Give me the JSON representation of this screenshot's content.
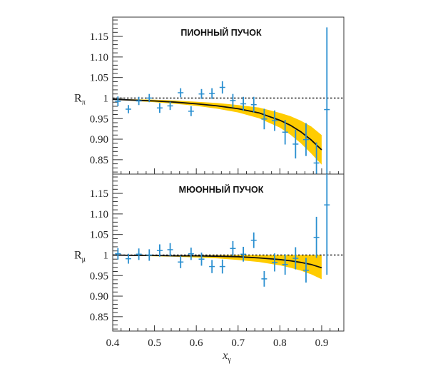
{
  "chart_data": [
    {
      "type": "scatter",
      "panel": "top",
      "title": "ПИОННЫЙ ПУЧОК",
      "ylabel": "R",
      "ylabel_sub": "π",
      "xlabel": "",
      "xlim": [
        0.4,
        0.953
      ],
      "ylim": [
        0.815,
        1.197
      ],
      "yticks": [
        0.85,
        0.9,
        0.95,
        1,
        1.05,
        1.1,
        1.15
      ],
      "ytick_labels": [
        "0.85",
        "0.90",
        "0.95",
        "1",
        "1.05",
        "1.10",
        "1.15"
      ],
      "reference_line": 1,
      "colors": {
        "points": "#2a8fd0",
        "band": "#ffcc00",
        "fit": "#111111",
        "reference": "#111111"
      },
      "series": [
        {
          "name": "data",
          "x": [
            0.4125,
            0.4375,
            0.4625,
            0.4875,
            0.5125,
            0.5375,
            0.5625,
            0.5875,
            0.6125,
            0.6375,
            0.6625,
            0.6875,
            0.7125,
            0.7375,
            0.7625,
            0.7875,
            0.8125,
            0.8375,
            0.8625,
            0.8875,
            0.9125
          ],
          "y": [
            0.992,
            0.973,
            0.993,
            1.0,
            0.976,
            0.981,
            1.013,
            0.968,
            1.01,
            1.011,
            1.026,
            0.994,
            0.986,
            0.984,
            0.949,
            0.945,
            0.917,
            0.888,
            0.899,
            0.842,
            0.972
          ],
          "err": [
            0.012,
            0.01,
            0.01,
            0.01,
            0.012,
            0.01,
            0.011,
            0.012,
            0.012,
            0.013,
            0.015,
            0.016,
            0.017,
            0.019,
            0.025,
            0.025,
            0.03,
            0.035,
            0.04,
            0.05,
            0.2
          ]
        },
        {
          "name": "fit",
          "x": [
            0.4,
            0.45,
            0.5,
            0.55,
            0.6,
            0.65,
            0.7,
            0.75,
            0.8,
            0.825,
            0.85,
            0.875,
            0.9
          ],
          "y": [
            0.997,
            0.995,
            0.993,
            0.99,
            0.986,
            0.981,
            0.974,
            0.964,
            0.946,
            0.934,
            0.918,
            0.898,
            0.874
          ],
          "band_low": [
            0.996,
            0.993,
            0.99,
            0.986,
            0.981,
            0.974,
            0.965,
            0.951,
            0.928,
            0.911,
            0.89,
            0.865,
            0.838
          ],
          "band_high": [
            0.998,
            0.997,
            0.996,
            0.994,
            0.991,
            0.988,
            0.983,
            0.977,
            0.964,
            0.956,
            0.945,
            0.931,
            0.91
          ]
        }
      ]
    },
    {
      "type": "scatter",
      "panel": "bottom",
      "title": "МЮОННЫЙ ПУЧОК",
      "ylabel": "R",
      "ylabel_sub": "μ",
      "xlabel": "x",
      "xlabel_sub": "γ",
      "xlim": [
        0.4,
        0.953
      ],
      "ylim": [
        0.815,
        1.197
      ],
      "xticks": [
        0.4,
        0.5,
        0.6,
        0.7,
        0.8,
        0.9
      ],
      "xtick_labels": [
        "0.4",
        "0.5",
        "0.6",
        "0.7",
        "0.8",
        "0.9"
      ],
      "yticks": [
        0.85,
        0.9,
        0.95,
        1,
        1.05,
        1.1,
        1.15
      ],
      "ytick_labels": [
        "0.85",
        "0.90",
        "0.95",
        "1",
        "1.05",
        "1.10",
        "1.15"
      ],
      "reference_line": 1,
      "colors": {
        "points": "#2a8fd0",
        "band": "#ffcc00",
        "fit": "#111111",
        "reference": "#111111"
      },
      "series": [
        {
          "name": "data",
          "x": [
            0.4125,
            0.4375,
            0.4625,
            0.4875,
            0.5125,
            0.5375,
            0.5625,
            0.5875,
            0.6125,
            0.6375,
            0.6625,
            0.6875,
            0.7125,
            0.7375,
            0.7625,
            0.7875,
            0.8125,
            0.8375,
            0.8625,
            0.8875,
            0.9125
          ],
          "y": [
            1.003,
            0.991,
            1.002,
            1.0,
            1.011,
            1.013,
            0.983,
            1.003,
            0.99,
            0.972,
            0.972,
            1.016,
            1.002,
            1.036,
            0.942,
            0.982,
            0.977,
            0.992,
            0.963,
            1.043,
            1.122
          ],
          "err": [
            0.014,
            0.012,
            0.014,
            0.014,
            0.015,
            0.016,
            0.015,
            0.015,
            0.016,
            0.016,
            0.017,
            0.018,
            0.018,
            0.019,
            0.019,
            0.022,
            0.025,
            0.027,
            0.03,
            0.05,
            0.17
          ]
        },
        {
          "name": "fit",
          "x": [
            0.4,
            0.45,
            0.5,
            0.55,
            0.6,
            0.65,
            0.7,
            0.75,
            0.8,
            0.825,
            0.85,
            0.875,
            0.9
          ],
          "y": [
            1.0,
            0.999,
            0.999,
            0.998,
            0.998,
            0.997,
            0.996,
            0.993,
            0.989,
            0.986,
            0.982,
            0.977,
            0.969
          ],
          "band_low": [
            0.999,
            0.998,
            0.997,
            0.996,
            0.994,
            0.992,
            0.988,
            0.983,
            0.975,
            0.969,
            0.962,
            0.953,
            0.941
          ],
          "band_high": [
            1.0,
            1.0,
            1.0,
            1.0,
            1.0,
            1.0,
            1.0,
            1.0,
            1.0,
            1.0,
            1.0,
            1.0,
            1.0
          ]
        }
      ]
    }
  ]
}
